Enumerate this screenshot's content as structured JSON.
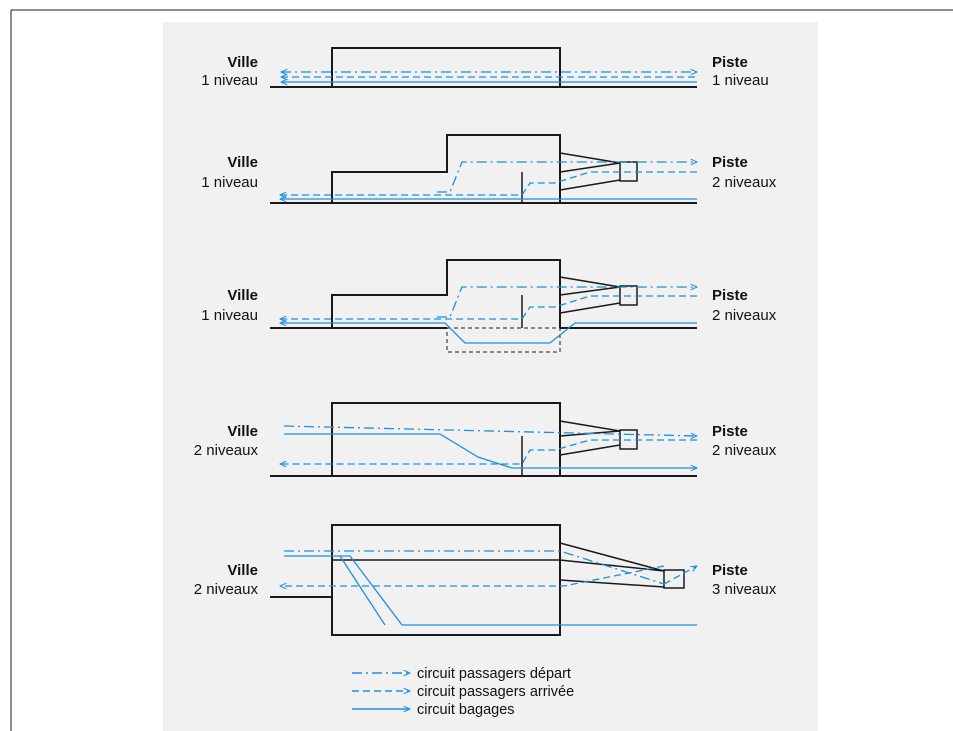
{
  "colors": {
    "flow": "#1a8fe3",
    "structure": "#1a1a1a",
    "panel": "#f1f1f1",
    "page": "#ffffff"
  },
  "rows": [
    {
      "left_title": "Ville",
      "left_sub": "1 niveau",
      "right_title": "Piste",
      "right_sub": "1 niveau"
    },
    {
      "left_title": "Ville",
      "left_sub": "1 niveau",
      "right_title": "Piste",
      "right_sub": "2 niveaux"
    },
    {
      "left_title": "Ville",
      "left_sub": "1 niveau",
      "right_title": "Piste",
      "right_sub": "2 niveaux"
    },
    {
      "left_title": "Ville",
      "left_sub": "2 niveaux",
      "right_title": "Piste",
      "right_sub": "2 niveaux"
    },
    {
      "left_title": "Ville",
      "left_sub": "2 niveaux",
      "right_title": "Piste",
      "right_sub": "3 niveaux"
    }
  ],
  "legend": [
    {
      "style": "dash-dot",
      "label": "circuit passagers départ"
    },
    {
      "style": "dashed",
      "label": "circuit passagers arrivée"
    },
    {
      "style": "solid",
      "label": "circuit bagages"
    }
  ]
}
